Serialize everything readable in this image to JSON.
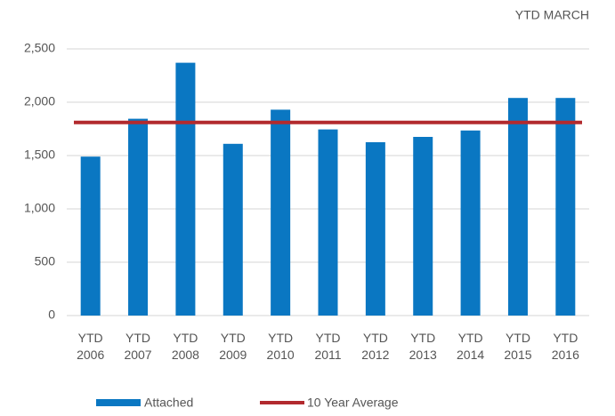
{
  "chart_data": {
    "type": "bar",
    "subtitle": "YTD MARCH",
    "categories": [
      "YTD 2006",
      "YTD 2007",
      "YTD 2008",
      "YTD 2009",
      "YTD 2010",
      "YTD 2011",
      "YTD 2012",
      "YTD 2013",
      "YTD 2014",
      "YTD 2015",
      "YTD 2016"
    ],
    "series": [
      {
        "name": "Attached",
        "color": "#0a77c2",
        "values": [
          1490,
          1845,
          2370,
          1610,
          1930,
          1745,
          1625,
          1675,
          1735,
          2040,
          2040
        ]
      }
    ],
    "average": {
      "name": "10 Year Average",
      "color": "#b22a2e",
      "value": 1810
    },
    "ylim": [
      0,
      2500
    ],
    "yticks": [
      0,
      500,
      {
        "value": 1000,
        "label": "1,000"
      },
      {
        "value": 1500,
        "label": "1,500"
      },
      {
        "value": 2000,
        "label": "2,000"
      },
      {
        "value": 2500,
        "label": "2,500"
      }
    ],
    "grid": true
  }
}
